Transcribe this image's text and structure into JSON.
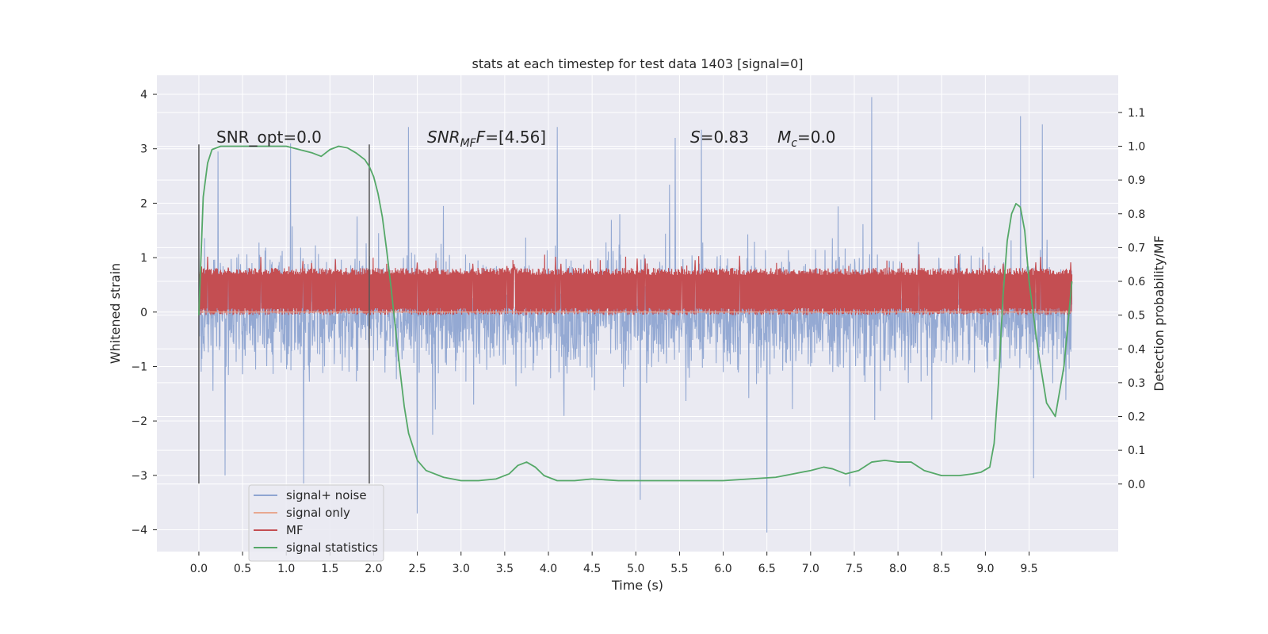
{
  "chart_data": {
    "type": "line",
    "title": "stats at each timestep for test data 1403 [signal=0]",
    "xlabel": "Time (s)",
    "ylabel": "Whitened strain",
    "y2label": "Detection probability/MF",
    "xlim": [
      -0.48,
      10.52
    ],
    "ylim": [
      -4.4,
      4.35
    ],
    "y2lim": [
      -0.2,
      1.21
    ],
    "xticks": [
      0.0,
      0.5,
      1.0,
      1.5,
      2.0,
      2.5,
      3.0,
      3.5,
      4.0,
      4.5,
      5.0,
      5.5,
      6.0,
      6.5,
      7.0,
      7.5,
      8.0,
      8.5,
      9.0,
      9.5
    ],
    "xtick_labels": [
      "0.0",
      "0.5",
      "1.0",
      "1.5",
      "2.0",
      "2.5",
      "3.0",
      "3.5",
      "4.0",
      "4.5",
      "5.0",
      "5.5",
      "6.0",
      "6.5",
      "7.0",
      "7.5",
      "8.0",
      "8.5",
      "9.0",
      "9.5"
    ],
    "yticks": [
      -4,
      -3,
      -2,
      -1,
      0,
      1,
      2,
      3,
      4
    ],
    "ytick_labels": [
      "−4",
      "−3",
      "−2",
      "−1",
      "0",
      "1",
      "2",
      "3",
      "4"
    ],
    "y2ticks": [
      0.0,
      0.1,
      0.2,
      0.3,
      0.4,
      0.5,
      0.6,
      0.7,
      0.8,
      0.9,
      1.0,
      1.1
    ],
    "y2tick_labels": [
      "0.0",
      "0.1",
      "0.2",
      "0.3",
      "0.4",
      "0.5",
      "0.6",
      "0.7",
      "0.8",
      "0.9",
      "1.0",
      "1.1"
    ],
    "grid": true,
    "legend_position": "lower-left",
    "annotations": {
      "snr_opt": "SNR_opt=0.0",
      "snr_mf_main": "SNR",
      "snr_mf_sub": "MF",
      "snr_mf_value": "=[4.56]",
      "s_main": "S",
      "s_value": "=0.83",
      "mc_main": "M",
      "mc_sub": "c",
      "mc_value": "=0.0"
    },
    "vlines": [
      0.0,
      1.95
    ],
    "series": [
      {
        "name": "signal+ noise",
        "color": "#8fa5d1",
        "axis": "left",
        "kind": "noise",
        "x_range": [
          0.0,
          9.99
        ],
        "envelope": 1.3,
        "peaks": [
          [
            0.0,
            1.5
          ],
          [
            0.22,
            2.95
          ],
          [
            1.05,
            3.1
          ],
          [
            2.4,
            3.4
          ],
          [
            4.1,
            3.4
          ],
          [
            5.45,
            3.2
          ],
          [
            5.75,
            3.35
          ],
          [
            7.7,
            3.95
          ],
          [
            9.4,
            3.6
          ],
          [
            9.65,
            3.45
          ],
          [
            1.2,
            -3.15
          ],
          [
            2.5,
            -3.7
          ],
          [
            5.05,
            -3.45
          ],
          [
            6.5,
            -4.05
          ],
          [
            7.45,
            -3.2
          ],
          [
            9.55,
            -3.05
          ]
        ]
      },
      {
        "name": "signal only",
        "color": "#e8a890",
        "axis": "left",
        "kind": "flat",
        "x_range": [
          0.0,
          9.99
        ],
        "value": 0.0
      },
      {
        "name": "MF",
        "color": "#c44e52",
        "axis": "right",
        "kind": "band",
        "x_range": [
          0.0,
          9.99
        ],
        "range": [
          0.5,
          0.64
        ],
        "max": 0.68
      },
      {
        "name": "signal statistics",
        "color": "#55a868",
        "axis": "right",
        "kind": "line",
        "x": [
          0.0,
          0.05,
          0.1,
          0.15,
          0.25,
          0.4,
          0.6,
          0.8,
          1.0,
          1.15,
          1.3,
          1.4,
          1.5,
          1.6,
          1.7,
          1.8,
          1.9,
          1.95,
          2.0,
          2.05,
          2.1,
          2.15,
          2.2,
          2.25,
          2.3,
          2.35,
          2.4,
          2.5,
          2.6,
          2.8,
          3.0,
          3.2,
          3.4,
          3.55,
          3.65,
          3.75,
          3.85,
          3.95,
          4.1,
          4.3,
          4.5,
          4.8,
          5.1,
          5.4,
          5.7,
          6.0,
          6.3,
          6.6,
          6.8,
          7.0,
          7.15,
          7.25,
          7.4,
          7.55,
          7.7,
          7.85,
          8.0,
          8.15,
          8.3,
          8.5,
          8.7,
          8.85,
          8.95,
          9.05,
          9.1,
          9.15,
          9.2,
          9.25,
          9.3,
          9.35,
          9.4,
          9.45,
          9.5,
          9.6,
          9.7,
          9.8,
          9.9,
          9.99
        ],
        "y": [
          0.5,
          0.85,
          0.95,
          0.99,
          1.0,
          1.0,
          1.0,
          1.0,
          1.0,
          0.99,
          0.98,
          0.97,
          0.99,
          1.0,
          0.995,
          0.98,
          0.96,
          0.94,
          0.91,
          0.86,
          0.79,
          0.69,
          0.58,
          0.46,
          0.34,
          0.23,
          0.15,
          0.07,
          0.04,
          0.02,
          0.01,
          0.01,
          0.015,
          0.03,
          0.055,
          0.065,
          0.05,
          0.025,
          0.01,
          0.01,
          0.015,
          0.01,
          0.01,
          0.01,
          0.01,
          0.01,
          0.015,
          0.02,
          0.03,
          0.04,
          0.05,
          0.045,
          0.03,
          0.04,
          0.065,
          0.07,
          0.065,
          0.065,
          0.04,
          0.025,
          0.025,
          0.03,
          0.035,
          0.05,
          0.12,
          0.3,
          0.55,
          0.72,
          0.8,
          0.83,
          0.82,
          0.75,
          0.6,
          0.4,
          0.24,
          0.2,
          0.35,
          0.6
        ]
      }
    ]
  }
}
